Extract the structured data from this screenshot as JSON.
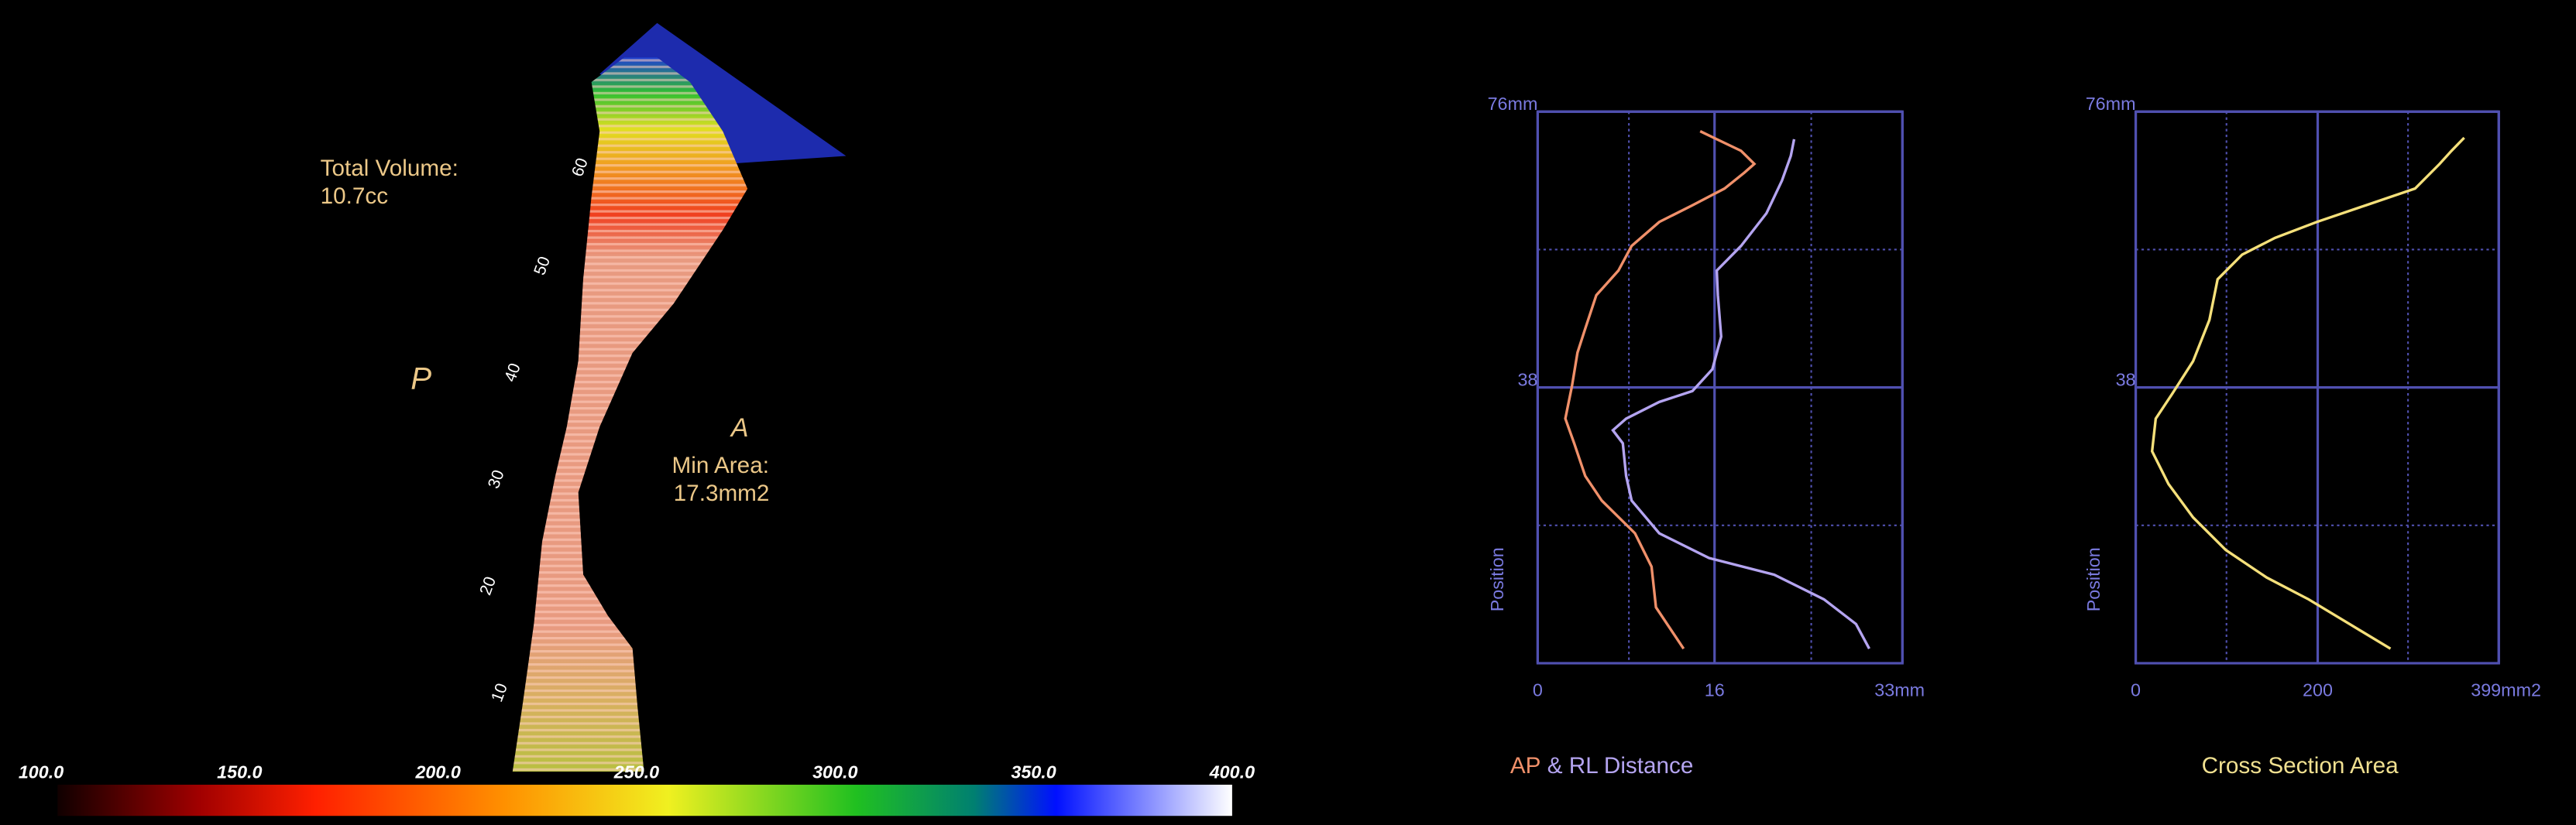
{
  "render": {
    "volume_label": "Total Volume:",
    "volume_value": "10.7cc",
    "posterior": "P",
    "anterior": "A",
    "min_area_label": "Min Area:",
    "min_area_value": "17.3mm2",
    "position_marks": [
      "60",
      "50",
      "40",
      "30",
      "20",
      "10"
    ]
  },
  "colorbar": {
    "range": [
      100,
      400
    ],
    "ticks": [
      {
        "value": 100,
        "label": "100.0"
      },
      {
        "value": 150,
        "label": "150.0"
      },
      {
        "value": 200,
        "label": "200.0"
      },
      {
        "value": 250,
        "label": "250.0"
      },
      {
        "value": 300,
        "label": "300.0"
      },
      {
        "value": 350,
        "label": "350.0"
      },
      {
        "value": 400,
        "label": "400.0"
      }
    ]
  },
  "chart_data": [
    {
      "type": "line",
      "title_parts": [
        {
          "text": "AP",
          "color": "#f0906a"
        },
        {
          "text": " & RL Distance",
          "color": "#b4a4f0"
        }
      ],
      "ylabel": "Position",
      "xlim": [
        0,
        33
      ],
      "xticks": [
        0,
        16,
        {
          "value": 33,
          "label": "33mm"
        }
      ],
      "xminor": [
        8.25,
        24.75
      ],
      "ylim": [
        0,
        76
      ],
      "yticks": [
        38,
        {
          "value": 76,
          "label": "76mm"
        }
      ],
      "yminor": [
        19,
        57
      ],
      "series": [
        {
          "color": "#f0906a",
          "x": [
            13.2,
            10.7,
            10.3,
            8.8,
            5.8,
            4.3,
            3.3,
            2.5,
            3.1,
            3.6,
            4.3,
            5.3,
            7.3,
            8.5,
            11.0,
            14.0,
            16.9,
            18.7,
            19.6,
            18.4,
            16.2,
            14.7
          ],
          "y": [
            2.0,
            7.7,
            13.3,
            17.9,
            22.4,
            25.8,
            30.3,
            33.7,
            38.2,
            42.8,
            46.1,
            50.7,
            54.1,
            57.5,
            60.8,
            63.1,
            65.4,
            67.6,
            68.8,
            70.6,
            72.2,
            73.3
          ]
        },
        {
          "color": "#b4a4f0",
          "x": [
            30.0,
            28.8,
            25.9,
            21.4,
            15.5,
            11.0,
            8.5,
            8.0,
            7.7,
            6.8,
            8.0,
            11.0,
            14.0,
            15.8,
            16.6,
            16.3,
            16.2,
            18.4,
            20.7,
            22.1,
            22.9,
            23.2
          ],
          "y": [
            2.0,
            5.4,
            8.8,
            12.2,
            14.5,
            17.9,
            22.4,
            25.8,
            30.3,
            32.1,
            33.7,
            36.0,
            37.5,
            40.5,
            45.0,
            50.7,
            54.1,
            57.5,
            62.0,
            66.5,
            69.9,
            72.2
          ]
        }
      ]
    },
    {
      "type": "line",
      "title_parts": [
        {
          "text": "Cross Section Area",
          "color": "#f0e090"
        }
      ],
      "ylabel": "Position",
      "xlim": [
        0,
        399
      ],
      "xticks": [
        0,
        200,
        {
          "value": 399,
          "label": "399mm2"
        }
      ],
      "xminor": [
        99.75,
        299.25
      ],
      "ylim": [
        0,
        76
      ],
      "yticks": [
        38,
        {
          "value": 76,
          "label": "76mm"
        }
      ],
      "yminor": [
        19,
        57
      ],
      "series": [
        {
          "color": "#f5e07a",
          "x": [
            280,
            235,
            190,
            144,
            99,
            63,
            36,
            18,
            22,
            40,
            63,
            81,
            90,
            117,
            153,
            199,
            253,
            307,
            334,
            347,
            361
          ],
          "y": [
            2.0,
            5.4,
            8.8,
            11.8,
            15.6,
            20.1,
            24.7,
            29.2,
            33.7,
            37.1,
            41.6,
            47.3,
            52.9,
            56.3,
            58.6,
            60.8,
            63.1,
            65.4,
            68.8,
            70.6,
            72.4
          ]
        }
      ]
    }
  ]
}
